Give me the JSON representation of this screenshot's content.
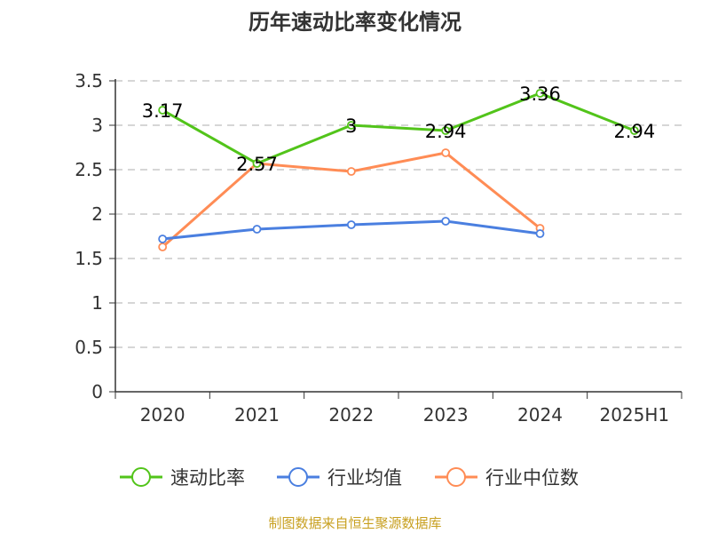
{
  "chart_data": {
    "type": "line",
    "title": "历年速动比率变化情况",
    "categories": [
      "2020",
      "2021",
      "2022",
      "2023",
      "2024",
      "2025H1"
    ],
    "ylim": [
      0,
      3.5
    ],
    "yticks": [
      "0",
      "0.5",
      "1",
      "1.5",
      "2",
      "2.5",
      "3",
      "3.5"
    ],
    "grid": true,
    "legend_position": "bottom",
    "series": [
      {
        "name": "速动比率",
        "color": "#52c41a",
        "values": [
          3.17,
          2.57,
          3,
          2.94,
          3.36,
          2.94
        ],
        "labels": [
          "3.17",
          "2.57",
          "3",
          "2.94",
          "3.36",
          "2.94"
        ]
      },
      {
        "name": "行业均值",
        "color": "#4a7fe0",
        "values": [
          1.72,
          1.83,
          1.88,
          1.92,
          1.78,
          null
        ]
      },
      {
        "name": "行业中位数",
        "color": "#ff8c55",
        "values": [
          1.63,
          2.57,
          2.48,
          2.69,
          1.84,
          null
        ]
      }
    ]
  },
  "source": "制图数据来自恒生聚源数据库"
}
